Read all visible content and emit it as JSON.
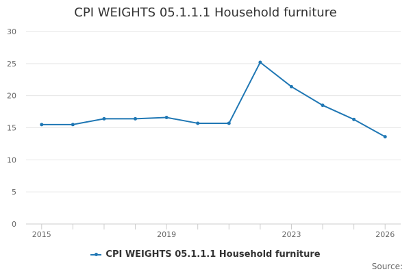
{
  "chart_data": {
    "type": "line",
    "title": "CPI WEIGHTS 05.1.1.1 Household furniture",
    "xlabel": "",
    "ylabel": "",
    "x": [
      2015,
      2016,
      2017,
      2018,
      2019,
      2020,
      2021,
      2022,
      2023,
      2024,
      2025,
      2026
    ],
    "x_tick_labels": [
      "2015",
      "2019",
      "2023",
      "2026"
    ],
    "x_tick_values": [
      2015,
      2019,
      2023,
      2026
    ],
    "y_ticks": [
      0,
      5,
      10,
      15,
      20,
      25,
      30
    ],
    "ylim": [
      0,
      30
    ],
    "xlim": [
      2014.5,
      2026.5
    ],
    "grid": true,
    "legend_position": "bottom",
    "series": [
      {
        "name": "CPI WEIGHTS 05.1.1.1 Household furniture",
        "color": "#1f77b4",
        "values": [
          15.5,
          15.5,
          16.4,
          16.4,
          16.6,
          15.7,
          15.7,
          25.2,
          21.4,
          18.5,
          16.3,
          13.6
        ]
      }
    ]
  },
  "source_label": "Source:"
}
